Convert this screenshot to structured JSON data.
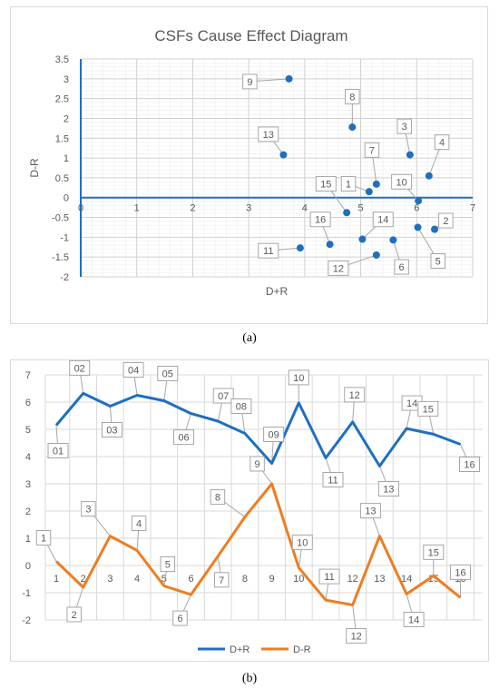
{
  "captions": {
    "a": "(a)",
    "b": "(b)"
  },
  "chart_data": [
    {
      "type": "scatter",
      "title": "CSFs Cause Effect Diagram",
      "xlabel": "D+R",
      "ylabel": "D-R",
      "xlim": [
        0,
        7
      ],
      "ylim": [
        -2,
        3.5
      ],
      "xticks": [
        "0",
        "1",
        "2",
        "3",
        "4",
        "5",
        "6",
        "7"
      ],
      "yticks": [
        "-2",
        "-1.5",
        "-1",
        "-0.5",
        "0",
        "0.5",
        "1",
        "1.5",
        "2",
        "2.5",
        "3",
        "3.5"
      ],
      "grid": true,
      "color": "#1f6fc0",
      "points": [
        {
          "label": "1",
          "x": 5.15,
          "y": 0.15,
          "lx": 4.78,
          "ly": 0.35
        },
        {
          "label": "2",
          "x": 6.32,
          "y": -0.8,
          "lx": 6.52,
          "ly": -0.58
        },
        {
          "label": "3",
          "x": 5.88,
          "y": 1.08,
          "lx": 5.78,
          "ly": 1.8
        },
        {
          "label": "4",
          "x": 6.22,
          "y": 0.55,
          "lx": 6.45,
          "ly": 1.4
        },
        {
          "label": "5",
          "x": 6.02,
          "y": -0.75,
          "lx": 6.38,
          "ly": -1.6
        },
        {
          "label": "6",
          "x": 5.58,
          "y": -1.07,
          "lx": 5.73,
          "ly": -1.75
        },
        {
          "label": "7",
          "x": 5.28,
          "y": 0.34,
          "lx": 5.2,
          "ly": 1.2
        },
        {
          "label": "8",
          "x": 4.85,
          "y": 1.78,
          "lx": 4.85,
          "ly": 2.55
        },
        {
          "label": "9",
          "x": 3.72,
          "y": 3.0,
          "lx": 3.02,
          "ly": 2.93
        },
        {
          "label": "10",
          "x": 6.03,
          "y": -0.08,
          "lx": 5.73,
          "ly": 0.4
        },
        {
          "label": "11",
          "x": 3.92,
          "y": -1.27,
          "lx": 3.35,
          "ly": -1.34
        },
        {
          "label": "12",
          "x": 5.28,
          "y": -1.45,
          "lx": 4.6,
          "ly": -1.78
        },
        {
          "label": "13",
          "x": 3.62,
          "y": 1.08,
          "lx": 3.35,
          "ly": 1.6
        },
        {
          "label": "14",
          "x": 5.03,
          "y": -1.05,
          "lx": 5.4,
          "ly": -0.55
        },
        {
          "label": "15",
          "x": 4.75,
          "y": -0.38,
          "lx": 4.38,
          "ly": 0.35
        },
        {
          "label": "16",
          "x": 4.45,
          "y": -1.18,
          "lx": 4.28,
          "ly": -0.55
        }
      ]
    },
    {
      "type": "line",
      "categories": [
        "1",
        "2",
        "3",
        "4",
        "5",
        "6",
        "7",
        "8",
        "9",
        "10",
        "11",
        "12",
        "13",
        "14",
        "15",
        "16"
      ],
      "yticks": [
        "-2",
        "-1",
        "0",
        "1",
        "2",
        "3",
        "4",
        "5",
        "6",
        "7"
      ],
      "ylim": [
        -2,
        7
      ],
      "grid": true,
      "legend_position": "bottom",
      "series": [
        {
          "name": "D+R",
          "color": "#1f6fc0",
          "values": [
            5.15,
            6.32,
            5.85,
            6.25,
            6.05,
            5.58,
            5.3,
            4.85,
            3.75,
            5.97,
            3.95,
            5.27,
            3.65,
            5.03,
            4.82,
            4.45
          ],
          "labels": [
            "01",
            "02",
            "03",
            "04",
            "05",
            "06",
            "07",
            "08",
            "09",
            "10",
            "11",
            "12",
            "13",
            "14",
            "15",
            "16"
          ]
        },
        {
          "name": "D-R",
          "color": "#ee7d22",
          "values": [
            0.15,
            -0.8,
            1.08,
            0.55,
            -0.75,
            -1.07,
            0.34,
            1.78,
            3.0,
            -0.08,
            -1.27,
            -1.45,
            1.08,
            -1.05,
            -0.38,
            -1.18
          ],
          "labels": [
            "1",
            "2",
            "3",
            "4",
            "5",
            "6",
            "7",
            "8",
            "9",
            "10",
            "11",
            "12",
            "13",
            "14",
            "15",
            "16"
          ]
        }
      ]
    }
  ]
}
